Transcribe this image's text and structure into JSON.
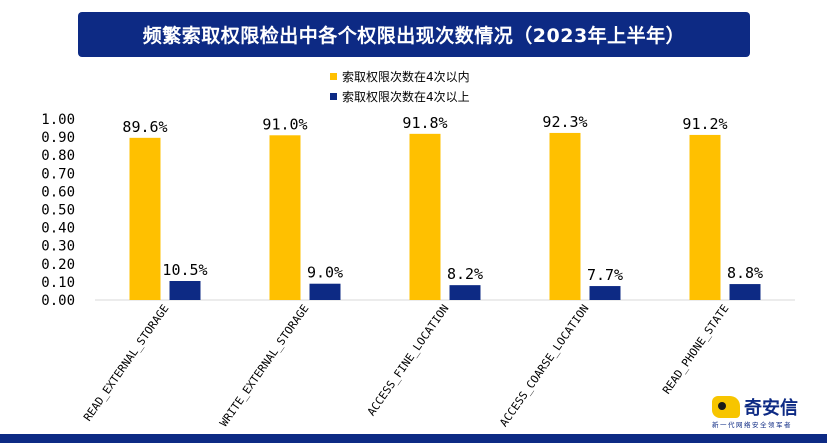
{
  "title": "频繁索取权限检出中各个权限出现次数情况（2023年上半年）",
  "logo": {
    "name": "奇安信",
    "tagline": "新一代网络安全领军者"
  },
  "colors": {
    "series1": "#ffc000",
    "series2": "#0d2a84",
    "banner": "#0d2a84",
    "axis": "#d9d9d9"
  },
  "chart_data": {
    "type": "bar",
    "categories": [
      "READ_EXTERNAL_STORAGE",
      "WRITE_EXTERNAL_STORAGE",
      "ACCESS_FINE_LOCATION",
      "ACCESS_COARSE_LOCATION",
      "READ_PHONE_STATE"
    ],
    "series": [
      {
        "name": "索取权限次数在4次以内",
        "values": [
          0.896,
          0.91,
          0.918,
          0.923,
          0.912
        ],
        "labels": [
          "89.6%",
          "91.0%",
          "91.8%",
          "92.3%",
          "91.2%"
        ],
        "color": "#ffc000"
      },
      {
        "name": "索取权限次数在4次以上",
        "values": [
          0.105,
          0.09,
          0.082,
          0.077,
          0.088
        ],
        "labels": [
          "10.5%",
          "9.0%",
          "8.2%",
          "7.7%",
          "8.8%"
        ],
        "color": "#0d2a84"
      }
    ],
    "yticks": [
      "0.00",
      "0.10",
      "0.20",
      "0.30",
      "0.40",
      "0.50",
      "0.60",
      "0.70",
      "0.80",
      "0.90",
      "1.00"
    ],
    "ylim": [
      0,
      1.0
    ],
    "grid": false,
    "legend_position": "top-center"
  }
}
